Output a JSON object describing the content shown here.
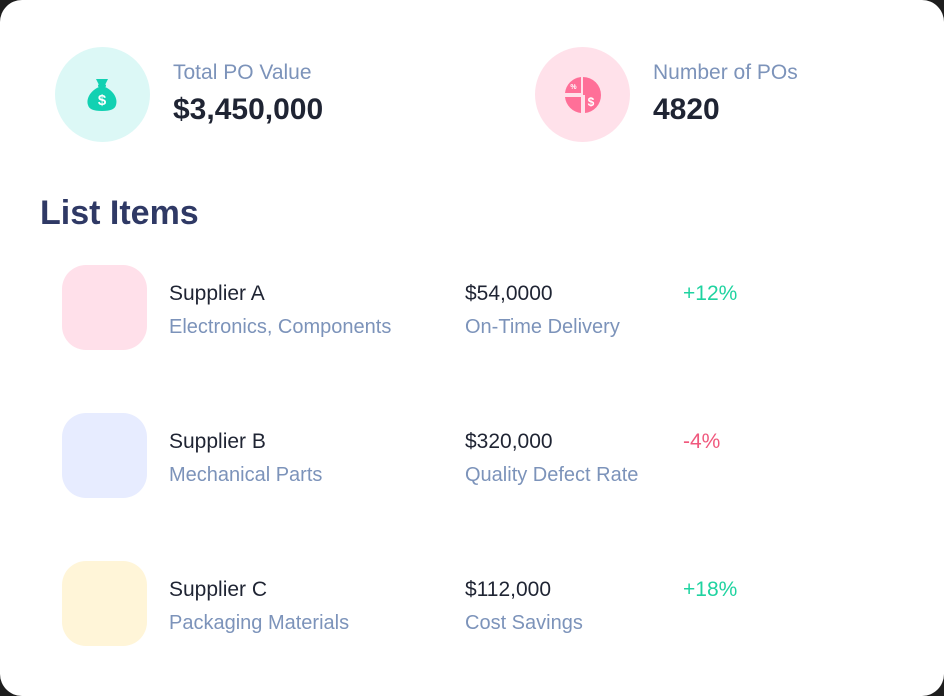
{
  "stats": [
    {
      "label": "Total PO Value",
      "value": "$3,450,000",
      "icon": "money-bag-icon",
      "bg": "#dcf8f6",
      "color": "#12d1b2"
    },
    {
      "label": "Number of POs",
      "value": "4820",
      "icon": "pie-chart-dollar-icon",
      "bg": "#ffe1ea",
      "color": "#ff6f98"
    }
  ],
  "list": {
    "title": "List Items",
    "items": [
      {
        "name": "Supplier A",
        "category": "Electronics, Components",
        "amount": "$54,0000",
        "metric": "On-Time Delivery",
        "change": "+12%",
        "trend": "up",
        "tile_color": "#ffe0ea"
      },
      {
        "name": "Supplier B",
        "category": "Mechanical Parts",
        "amount": "$320,000",
        "metric": "Quality Defect Rate",
        "change": "-4%",
        "trend": "down",
        "tile_color": "#e7ecff"
      },
      {
        "name": "Supplier C",
        "category": "Packaging Materials",
        "amount": "$112,000",
        "metric": "Cost Savings",
        "change": "+18%",
        "trend": "up",
        "tile_color": "#fff5d8"
      }
    ]
  },
  "colors": {
    "positive": "#1fd3a0",
    "negative": "#f0587d",
    "heading": "#2f3965",
    "muted": "#7c93ba"
  }
}
